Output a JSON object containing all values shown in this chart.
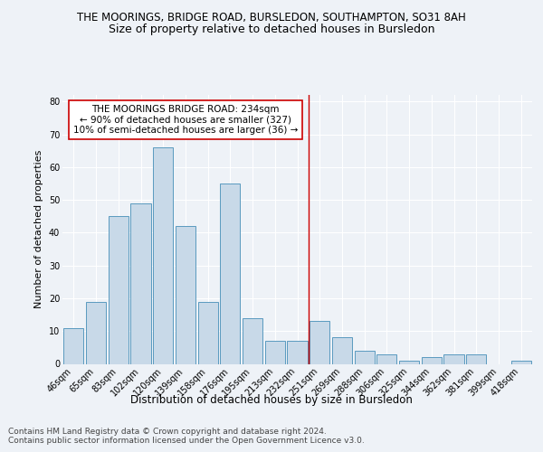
{
  "title1": "THE MOORINGS, BRIDGE ROAD, BURSLEDON, SOUTHAMPTON, SO31 8AH",
  "title2": "Size of property relative to detached houses in Bursledon",
  "xlabel": "Distribution of detached houses by size in Bursledon",
  "ylabel": "Number of detached properties",
  "footnote": "Contains HM Land Registry data © Crown copyright and database right 2024.\nContains public sector information licensed under the Open Government Licence v3.0.",
  "bar_labels": [
    "46sqm",
    "65sqm",
    "83sqm",
    "102sqm",
    "120sqm",
    "139sqm",
    "158sqm",
    "176sqm",
    "195sqm",
    "213sqm",
    "232sqm",
    "251sqm",
    "269sqm",
    "288sqm",
    "306sqm",
    "325sqm",
    "344sqm",
    "362sqm",
    "381sqm",
    "399sqm",
    "418sqm"
  ],
  "bar_values": [
    11,
    19,
    45,
    49,
    66,
    42,
    19,
    55,
    14,
    7,
    7,
    13,
    8,
    4,
    3,
    1,
    2,
    3,
    3,
    0,
    1
  ],
  "bar_color": "#c8d9e8",
  "bar_edge_color": "#5a9abf",
  "vline_x": 10.5,
  "vline_color": "#cc0000",
  "annotation_text": "THE MOORINGS BRIDGE ROAD: 234sqm\n← 90% of detached houses are smaller (327)\n10% of semi-detached houses are larger (36) →",
  "annotation_box_color": "white",
  "annotation_box_edge": "#cc0000",
  "ylim": [
    0,
    82
  ],
  "yticks": [
    0,
    10,
    20,
    30,
    40,
    50,
    60,
    70,
    80
  ],
  "bg_color": "#eef2f7",
  "grid_color": "#ffffff",
  "title1_fontsize": 8.5,
  "title2_fontsize": 9,
  "xlabel_fontsize": 8.5,
  "ylabel_fontsize": 8,
  "tick_fontsize": 7,
  "footnote_fontsize": 6.5,
  "annotation_fontsize": 7.5
}
